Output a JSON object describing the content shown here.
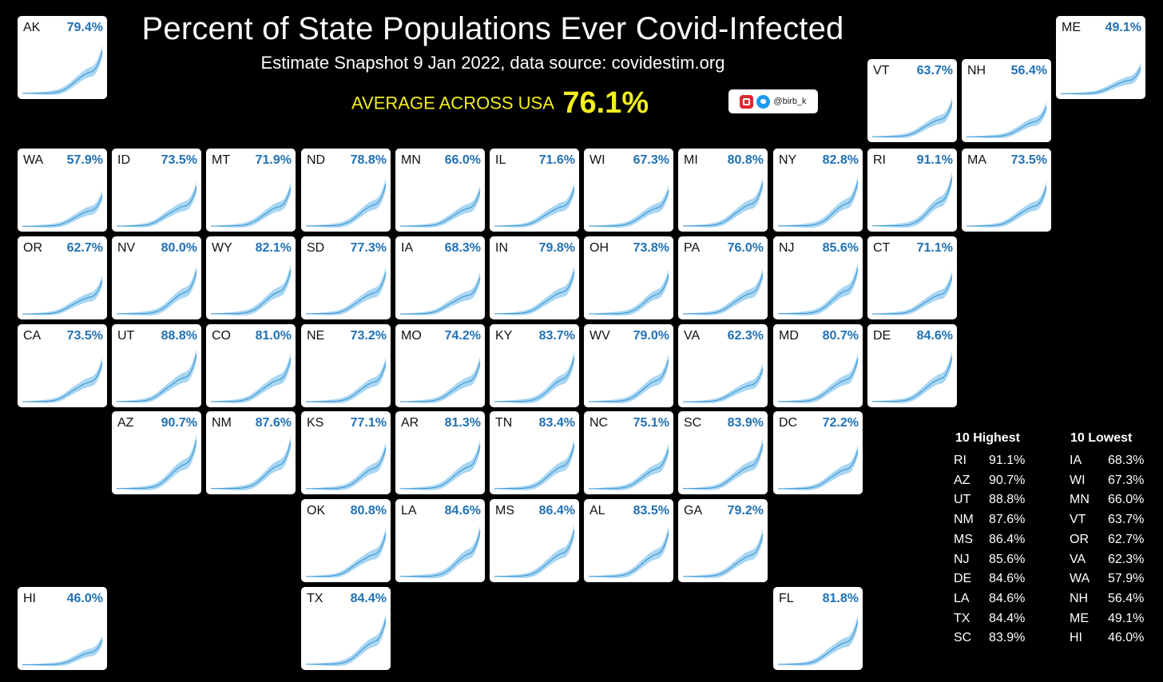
{
  "header": {
    "title": "Percent of State Populations Ever Covid-Infected",
    "subtitle": "Estimate Snapshot 9 Jan 2022, data source: covidestim.org",
    "average_label": "AVERAGE ACROSS USA",
    "average_value": "76.1%",
    "credit": "@birb_k"
  },
  "colors": {
    "background": "#000000",
    "accent_yellow": "#f3ee1d",
    "value_blue": "#2071b6",
    "band": "#a9d6f2",
    "line": "#2f8fd1"
  },
  "chart_data": {
    "type": "small_multiples_area",
    "unit": "percent ever infected",
    "states": [
      {
        "abbr": "AK",
        "value": 79.4,
        "label": "79.4%",
        "col": 0,
        "row": 0
      },
      {
        "abbr": "ME",
        "value": 49.1,
        "label": "49.1%",
        "col": 11,
        "row": 0
      },
      {
        "abbr": "VT",
        "value": 63.7,
        "label": "63.7%",
        "col": 9,
        "row": 0.5
      },
      {
        "abbr": "NH",
        "value": 56.4,
        "label": "56.4%",
        "col": 10,
        "row": 0.5
      },
      {
        "abbr": "WA",
        "value": 57.9,
        "label": "57.9%",
        "col": 0,
        "row": 1
      },
      {
        "abbr": "ID",
        "value": 73.5,
        "label": "73.5%",
        "col": 1,
        "row": 1
      },
      {
        "abbr": "MT",
        "value": 71.9,
        "label": "71.9%",
        "col": 2,
        "row": 1
      },
      {
        "abbr": "ND",
        "value": 78.8,
        "label": "78.8%",
        "col": 3,
        "row": 1
      },
      {
        "abbr": "MN",
        "value": 66.0,
        "label": "66.0%",
        "col": 4,
        "row": 1
      },
      {
        "abbr": "IL",
        "value": 71.6,
        "label": "71.6%",
        "col": 5,
        "row": 1
      },
      {
        "abbr": "WI",
        "value": 67.3,
        "label": "67.3%",
        "col": 6,
        "row": 1
      },
      {
        "abbr": "MI",
        "value": 80.8,
        "label": "80.8%",
        "col": 7,
        "row": 1
      },
      {
        "abbr": "NY",
        "value": 82.8,
        "label": "82.8%",
        "col": 8,
        "row": 1
      },
      {
        "abbr": "RI",
        "value": 91.1,
        "label": "91.1%",
        "col": 9,
        "row": 1
      },
      {
        "abbr": "MA",
        "value": 73.5,
        "label": "73.5%",
        "col": 10,
        "row": 1
      },
      {
        "abbr": "OR",
        "value": 62.7,
        "label": "62.7%",
        "col": 0,
        "row": 2
      },
      {
        "abbr": "NV",
        "value": 80.0,
        "label": "80.0%",
        "col": 1,
        "row": 2
      },
      {
        "abbr": "WY",
        "value": 82.1,
        "label": "82.1%",
        "col": 2,
        "row": 2
      },
      {
        "abbr": "SD",
        "value": 77.3,
        "label": "77.3%",
        "col": 3,
        "row": 2
      },
      {
        "abbr": "IA",
        "value": 68.3,
        "label": "68.3%",
        "col": 4,
        "row": 2
      },
      {
        "abbr": "IN",
        "value": 79.8,
        "label": "79.8%",
        "col": 5,
        "row": 2
      },
      {
        "abbr": "OH",
        "value": 73.8,
        "label": "73.8%",
        "col": 6,
        "row": 2
      },
      {
        "abbr": "PA",
        "value": 76.0,
        "label": "76.0%",
        "col": 7,
        "row": 2
      },
      {
        "abbr": "NJ",
        "value": 85.6,
        "label": "85.6%",
        "col": 8,
        "row": 2
      },
      {
        "abbr": "CT",
        "value": 71.1,
        "label": "71.1%",
        "col": 9,
        "row": 2
      },
      {
        "abbr": "CA",
        "value": 73.5,
        "label": "73.5%",
        "col": 0,
        "row": 3
      },
      {
        "abbr": "UT",
        "value": 88.8,
        "label": "88.8%",
        "col": 1,
        "row": 3
      },
      {
        "abbr": "CO",
        "value": 81.0,
        "label": "81.0%",
        "col": 2,
        "row": 3
      },
      {
        "abbr": "NE",
        "value": 73.2,
        "label": "73.2%",
        "col": 3,
        "row": 3
      },
      {
        "abbr": "MO",
        "value": 74.2,
        "label": "74.2%",
        "col": 4,
        "row": 3
      },
      {
        "abbr": "KY",
        "value": 83.7,
        "label": "83.7%",
        "col": 5,
        "row": 3
      },
      {
        "abbr": "WV",
        "value": 79.0,
        "label": "79.0%",
        "col": 6,
        "row": 3
      },
      {
        "abbr": "VA",
        "value": 62.3,
        "label": "62.3%",
        "col": 7,
        "row": 3
      },
      {
        "abbr": "MD",
        "value": 80.7,
        "label": "80.7%",
        "col": 8,
        "row": 3
      },
      {
        "abbr": "DE",
        "value": 84.6,
        "label": "84.6%",
        "col": 9,
        "row": 3
      },
      {
        "abbr": "AZ",
        "value": 90.7,
        "label": "90.7%",
        "col": 1,
        "row": 4
      },
      {
        "abbr": "NM",
        "value": 87.6,
        "label": "87.6%",
        "col": 2,
        "row": 4
      },
      {
        "abbr": "KS",
        "value": 77.1,
        "label": "77.1%",
        "col": 3,
        "row": 4
      },
      {
        "abbr": "AR",
        "value": 81.3,
        "label": "81.3%",
        "col": 4,
        "row": 4
      },
      {
        "abbr": "TN",
        "value": 83.4,
        "label": "83.4%",
        "col": 5,
        "row": 4
      },
      {
        "abbr": "NC",
        "value": 75.1,
        "label": "75.1%",
        "col": 6,
        "row": 4
      },
      {
        "abbr": "SC",
        "value": 83.9,
        "label": "83.9%",
        "col": 7,
        "row": 4
      },
      {
        "abbr": "DC",
        "value": 72.2,
        "label": "72.2%",
        "col": 8,
        "row": 4
      },
      {
        "abbr": "OK",
        "value": 80.8,
        "label": "80.8%",
        "col": 3,
        "row": 5
      },
      {
        "abbr": "LA",
        "value": 84.6,
        "label": "84.6%",
        "col": 4,
        "row": 5
      },
      {
        "abbr": "MS",
        "value": 86.4,
        "label": "86.4%",
        "col": 5,
        "row": 5
      },
      {
        "abbr": "AL",
        "value": 83.5,
        "label": "83.5%",
        "col": 6,
        "row": 5
      },
      {
        "abbr": "GA",
        "value": 79.2,
        "label": "79.2%",
        "col": 7,
        "row": 5
      },
      {
        "abbr": "HI",
        "value": 46.0,
        "label": "46.0%",
        "col": 0,
        "row": 6
      },
      {
        "abbr": "TX",
        "value": 84.4,
        "label": "84.4%",
        "col": 3,
        "row": 6
      },
      {
        "abbr": "FL",
        "value": 81.8,
        "label": "81.8%",
        "col": 8,
        "row": 6
      }
    ]
  },
  "rankings": {
    "highest": {
      "title": "10 Highest",
      "rows": [
        {
          "state": "RI",
          "value": "91.1%"
        },
        {
          "state": "AZ",
          "value": "90.7%"
        },
        {
          "state": "UT",
          "value": "88.8%"
        },
        {
          "state": "NM",
          "value": "87.6%"
        },
        {
          "state": "MS",
          "value": "86.4%"
        },
        {
          "state": "NJ",
          "value": "85.6%"
        },
        {
          "state": "DE",
          "value": "84.6%"
        },
        {
          "state": "LA",
          "value": "84.6%"
        },
        {
          "state": "TX",
          "value": "84.4%"
        },
        {
          "state": "SC",
          "value": "83.9%"
        }
      ]
    },
    "lowest": {
      "title": "10 Lowest",
      "rows": [
        {
          "state": "IA",
          "value": "68.3%"
        },
        {
          "state": "WI",
          "value": "67.3%"
        },
        {
          "state": "MN",
          "value": "66.0%"
        },
        {
          "state": "VT",
          "value": "63.7%"
        },
        {
          "state": "OR",
          "value": "62.7%"
        },
        {
          "state": "VA",
          "value": "62.3%"
        },
        {
          "state": "WA",
          "value": "57.9%"
        },
        {
          "state": "NH",
          "value": "56.4%"
        },
        {
          "state": "ME",
          "value": "49.1%"
        },
        {
          "state": "HI",
          "value": "46.0%"
        }
      ]
    }
  }
}
